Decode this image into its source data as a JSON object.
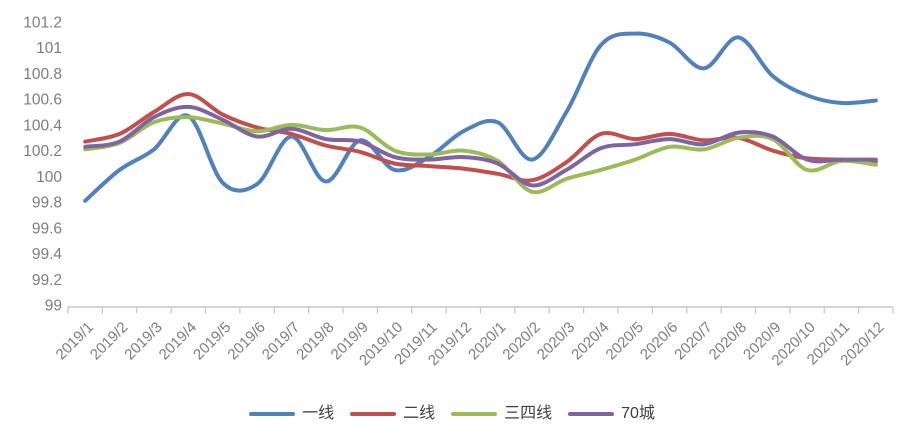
{
  "chart_data": {
    "type": "line",
    "title": "",
    "xlabel": "",
    "ylabel": "",
    "grid": false,
    "legend_position": "bottom",
    "ylim": [
      99,
      101.2
    ],
    "ytick_step": 0.2,
    "y_tick_labels": [
      "99",
      "99.2",
      "99.4",
      "99.6",
      "99.8",
      "100",
      "100.2",
      "100.4",
      "100.6",
      "100.8",
      "101",
      "101.2"
    ],
    "categories": [
      "2019/1",
      "2019/2",
      "2019/3",
      "2019/4",
      "2019/5",
      "2019/6",
      "2019/7",
      "2019/8",
      "2019/9",
      "2019/10",
      "2019/11",
      "2019/12",
      "2020/1",
      "2020/2",
      "2020/3",
      "2020/4",
      "2020/5",
      "2020/6",
      "2020/7",
      "2020/8",
      "2020/9",
      "2020/10",
      "2020/11",
      "2020/12"
    ],
    "series": [
      {
        "name": "一线",
        "color": "#4F81BD",
        "values": [
          99.81,
          100.05,
          100.21,
          100.47,
          99.95,
          99.94,
          100.31,
          99.96,
          100.28,
          100.05,
          100.15,
          100.35,
          100.42,
          100.13,
          100.5,
          101.02,
          101.11,
          101.04,
          100.84,
          101.08,
          100.78,
          100.63,
          100.57,
          100.59
        ]
      },
      {
        "name": "二线",
        "color": "#C0504D",
        "values": [
          100.27,
          100.33,
          100.5,
          100.64,
          100.48,
          100.38,
          100.33,
          100.24,
          100.19,
          100.1,
          100.08,
          100.06,
          100.02,
          99.97,
          100.11,
          100.33,
          100.29,
          100.33,
          100.28,
          100.3,
          100.2,
          100.14,
          100.13,
          100.11
        ]
      },
      {
        "name": "三四线",
        "color": "#9BBB59",
        "values": [
          100.21,
          100.26,
          100.42,
          100.46,
          100.41,
          100.35,
          100.4,
          100.36,
          100.38,
          100.2,
          100.17,
          100.2,
          100.12,
          99.88,
          99.98,
          100.05,
          100.13,
          100.23,
          100.21,
          100.3,
          100.29,
          100.05,
          100.12,
          100.09
        ]
      },
      {
        "name": "70城",
        "color": "#8064A2",
        "values": [
          100.23,
          100.27,
          100.46,
          100.54,
          100.44,
          100.31,
          100.37,
          100.29,
          100.27,
          100.15,
          100.13,
          100.15,
          100.1,
          99.93,
          100.05,
          100.22,
          100.25,
          100.29,
          100.25,
          100.34,
          100.31,
          100.13,
          100.13,
          100.13
        ]
      }
    ],
    "axis_color": "#c6c6c6",
    "tick_label_color": "#7d7d7d"
  }
}
